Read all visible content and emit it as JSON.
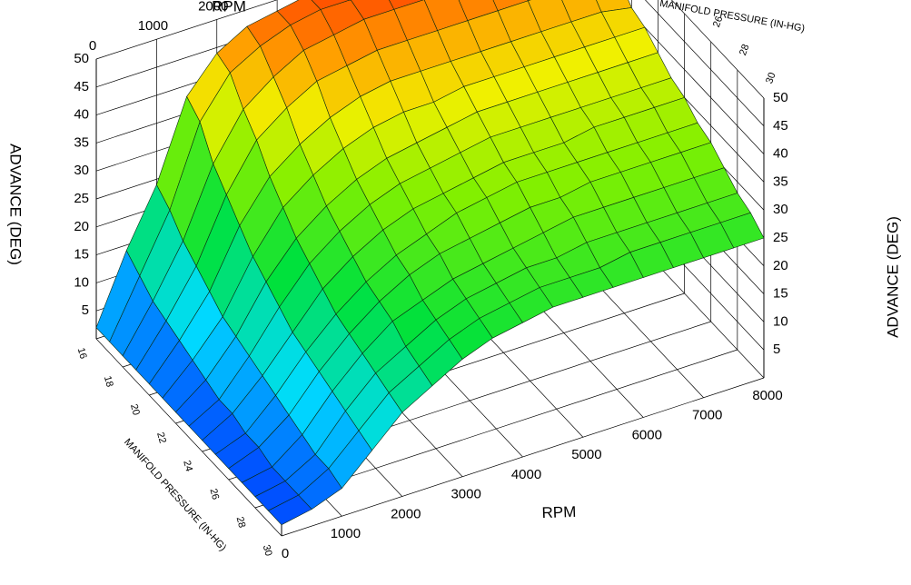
{
  "chart_data": {
    "type": "surface",
    "x_axis": {
      "label": "RPM",
      "ticks": [
        0,
        1000,
        2000,
        3000,
        4000,
        5000,
        6000,
        7000,
        8000
      ],
      "range": [
        0,
        8000
      ]
    },
    "y_axis": {
      "label": "MANIFOLD PRESSURE (IN-HG)",
      "ticks": [
        16,
        18,
        20,
        22,
        24,
        26,
        28,
        30
      ],
      "range": [
        16,
        30
      ]
    },
    "z_axis": {
      "label": "ADVANCE (DEG)",
      "ticks": [
        5,
        10,
        15,
        20,
        25,
        30,
        35,
        40,
        45,
        50
      ],
      "range": [
        0,
        50
      ]
    },
    "grid": true,
    "rpm_values": [
      0,
      500,
      1000,
      1500,
      2000,
      2500,
      3000,
      3500,
      4000,
      4500,
      5000,
      5500,
      6000,
      6500,
      7000,
      7500,
      8000
    ],
    "map_values": [
      16,
      17,
      18,
      19,
      20,
      21,
      22,
      23,
      24,
      25,
      26,
      27,
      28,
      29,
      30
    ],
    "advance_by_map": [
      [
        2,
        14,
        24,
        38,
        44,
        47,
        48,
        49,
        50,
        50,
        50,
        50,
        50,
        50,
        50,
        50,
        50
      ],
      [
        2,
        12,
        22,
        36,
        43,
        46,
        48,
        49,
        49,
        50,
        50,
        50,
        50,
        50,
        50,
        50,
        50
      ],
      [
        2,
        10,
        19,
        31,
        39,
        43,
        46,
        47,
        48,
        48,
        48,
        48,
        48,
        48,
        48,
        48,
        47
      ],
      [
        2,
        9,
        17,
        28,
        36,
        40,
        43,
        44,
        45,
        45,
        45,
        45,
        45,
        45,
        45,
        45,
        44
      ],
      [
        2,
        8,
        15,
        25,
        32,
        36,
        39,
        41,
        42,
        42,
        42,
        42,
        42,
        42,
        42,
        42,
        41
      ],
      [
        2,
        7,
        13,
        22,
        29,
        33,
        36,
        38,
        39,
        39,
        40,
        40,
        40,
        40,
        40,
        40,
        40
      ],
      [
        2,
        6,
        12,
        20,
        26,
        30,
        33,
        35,
        36,
        37,
        38,
        38,
        38,
        38,
        38,
        38,
        38
      ],
      [
        2,
        5,
        11,
        18,
        24,
        28,
        31,
        33,
        34,
        35,
        36,
        36,
        36,
        36,
        36,
        36,
        36
      ],
      [
        2,
        5,
        10,
        16,
        22,
        26,
        29,
        31,
        32,
        33,
        34,
        34,
        34,
        35,
        35,
        35,
        35
      ],
      [
        2,
        4,
        9,
        15,
        20,
        24,
        27,
        29,
        31,
        32,
        33,
        33,
        33,
        33,
        33,
        33,
        33
      ],
      [
        2,
        4,
        8,
        14,
        19,
        23,
        26,
        28,
        29,
        30,
        31,
        31,
        32,
        32,
        32,
        32,
        32
      ],
      [
        2,
        3,
        7,
        13,
        18,
        22,
        24,
        26,
        27,
        28,
        29,
        30,
        30,
        30,
        30,
        30,
        30
      ],
      [
        2,
        3,
        6,
        12,
        17,
        20,
        23,
        25,
        26,
        27,
        27,
        28,
        28,
        28,
        28,
        28,
        28
      ],
      [
        2,
        3,
        6,
        11,
        16,
        19,
        22,
        24,
        25,
        26,
        26,
        26,
        27,
        27,
        27,
        27,
        27
      ],
      [
        2,
        3,
        5,
        10,
        15,
        18,
        21,
        23,
        24,
        25,
        25,
        25,
        25,
        25,
        25,
        25,
        25
      ]
    ]
  }
}
